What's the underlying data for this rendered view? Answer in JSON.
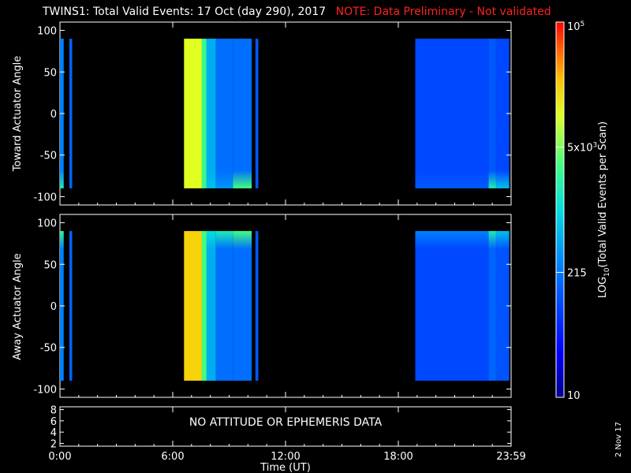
{
  "title": {
    "main": "TWINS1: Total Valid Events: 17 Oct (day 290), 2017",
    "note": "NOTE: Data Preliminary - Not validated",
    "note_color": "#ff2020"
  },
  "chart_data": [
    {
      "type": "heatmap",
      "name": "toward",
      "ylabel": "Toward Actuator Angle",
      "ylim": [
        -110,
        110
      ],
      "yticks": [
        100,
        50,
        0,
        -50,
        -100
      ],
      "xlim": [
        0,
        24
      ],
      "angle_range": [
        -90,
        90
      ],
      "blocks": [
        {
          "x0": 0.0,
          "x1": 0.2,
          "level": 0.35,
          "low_end": 0.55
        },
        {
          "x0": 0.5,
          "x1": 0.65,
          "level": 0.3,
          "low_end": 0.3
        },
        {
          "x0": 6.6,
          "x1": 7.55,
          "level": 0.75,
          "low_end": 0.75
        },
        {
          "x0": 7.55,
          "x1": 7.8,
          "level": 0.6,
          "low_end": 0.6
        },
        {
          "x0": 7.8,
          "x1": 8.3,
          "level": 0.42,
          "low_end": 0.45
        },
        {
          "x0": 8.3,
          "x1": 9.2,
          "level": 0.32,
          "low_end": 0.38
        },
        {
          "x0": 9.2,
          "x1": 10.2,
          "level": 0.32,
          "low_end": 0.62
        },
        {
          "x0": 10.4,
          "x1": 10.55,
          "level": 0.28,
          "low_end": 0.28
        },
        {
          "x0": 18.9,
          "x1": 22.8,
          "level": 0.25,
          "low_end": 0.28
        },
        {
          "x0": 22.8,
          "x1": 23.2,
          "level": 0.28,
          "low_end": 0.55
        },
        {
          "x0": 23.2,
          "x1": 23.9,
          "level": 0.25,
          "low_end": 0.45
        }
      ]
    },
    {
      "type": "heatmap",
      "name": "away",
      "ylabel": "Away Actuator Angle",
      "ylim": [
        -110,
        110
      ],
      "yticks": [
        100,
        50,
        0,
        -50,
        -100
      ],
      "xlim": [
        0,
        24
      ],
      "angle_range": [
        -90,
        90
      ],
      "blocks": [
        {
          "x0": 0.0,
          "x1": 0.2,
          "level": 0.35,
          "high_end": 0.6
        },
        {
          "x0": 0.5,
          "x1": 0.65,
          "level": 0.3,
          "high_end": 0.3
        },
        {
          "x0": 6.6,
          "x1": 7.55,
          "level": 0.82,
          "high_end": 0.82
        },
        {
          "x0": 7.55,
          "x1": 7.8,
          "level": 0.62,
          "high_end": 0.62
        },
        {
          "x0": 7.8,
          "x1": 8.3,
          "level": 0.42,
          "high_end": 0.5
        },
        {
          "x0": 8.3,
          "x1": 9.2,
          "level": 0.32,
          "high_end": 0.55
        },
        {
          "x0": 9.2,
          "x1": 10.2,
          "level": 0.32,
          "high_end": 0.62
        },
        {
          "x0": 10.4,
          "x1": 10.55,
          "level": 0.28,
          "high_end": 0.28
        },
        {
          "x0": 18.9,
          "x1": 22.8,
          "level": 0.25,
          "high_end": 0.35
        },
        {
          "x0": 22.8,
          "x1": 23.2,
          "level": 0.3,
          "high_end": 0.55
        },
        {
          "x0": 23.2,
          "x1": 23.9,
          "level": 0.27,
          "high_end": 0.45
        }
      ]
    },
    {
      "type": "line",
      "name": "ephemeris",
      "ylim": [
        1.5,
        8.5
      ],
      "yticks": [
        8,
        6,
        4,
        2
      ],
      "annotation": "NO ATTITUDE OR EPHEMERIS DATA"
    }
  ],
  "xaxis": {
    "tick_labels": [
      "0:00",
      "6:00",
      "12:00",
      "18:00",
      "23:59"
    ],
    "tick_hours": [
      0,
      6,
      12,
      18,
      24
    ],
    "label": "Time (UT)"
  },
  "colorbar": {
    "label": "LOG10(Total Valid Events per Scan)",
    "label_main": "LOG",
    "label_sub": "10",
    "label_rest": "(Total Valid Events per Scan)",
    "ticks": [
      {
        "label": "10",
        "level": 0.0
      },
      {
        "label": "215",
        "level": 0.333
      },
      {
        "label": "5x10",
        "sup": "3",
        "level": 0.667
      },
      {
        "label": "10",
        "sup": "5",
        "level": 1.0
      }
    ]
  },
  "date_stamp": "2 Nov 17"
}
